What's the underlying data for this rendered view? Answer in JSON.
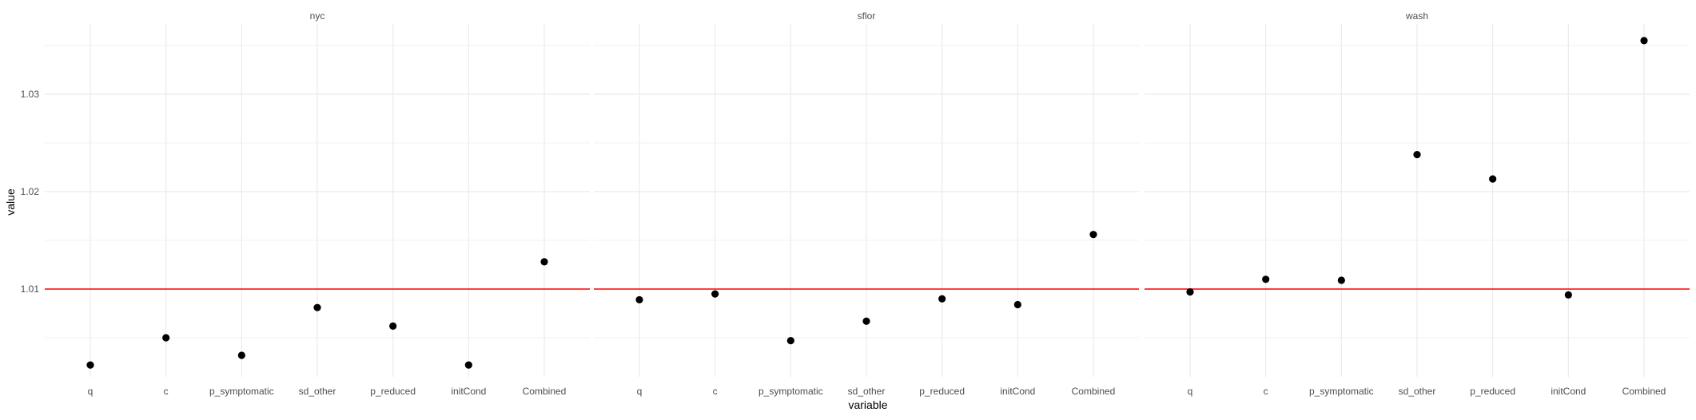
{
  "chart_data": {
    "type": "scatter",
    "xlabel": "variable",
    "ylabel": "value",
    "ylim": [
      1.0,
      1.0355
    ],
    "y_ticks": [
      1.01,
      1.02,
      1.03
    ],
    "y_tick_labels": [
      "1.01",
      "1.02",
      "1.03"
    ],
    "categories": [
      "q",
      "c",
      "p_symptomatic",
      "sd_other",
      "p_reduced",
      "initCond",
      "Combined"
    ],
    "reference_line": {
      "y": 1.01,
      "color": "#ff0000"
    },
    "grid": true,
    "point_color": "#000000",
    "panel_grid_color": "#ebebeb",
    "panels": [
      {
        "title": "nyc",
        "values": [
          1.0022,
          1.005,
          1.0032,
          1.0081,
          1.0062,
          1.0022,
          1.0128
        ]
      },
      {
        "title": "sflor",
        "values": [
          1.0089,
          1.0095,
          1.0047,
          1.0067,
          1.009,
          1.0084,
          1.0156
        ]
      },
      {
        "title": "wash",
        "values": [
          1.0097,
          1.011,
          1.0109,
          1.0238,
          1.0213,
          1.0094,
          1.0355
        ]
      }
    ]
  }
}
